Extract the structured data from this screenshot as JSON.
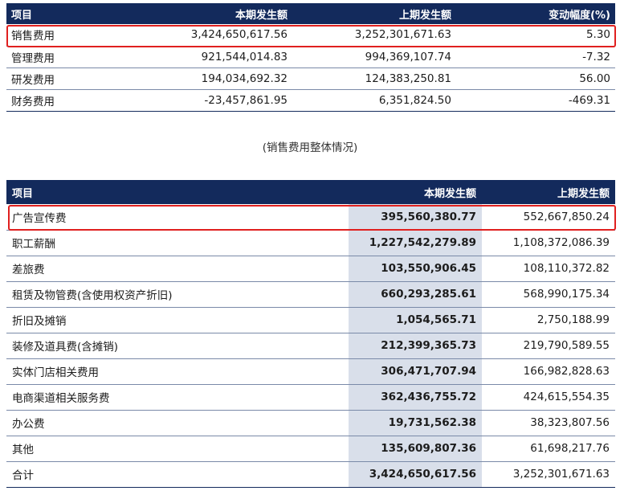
{
  "table1": {
    "headers": [
      "项目",
      "本期发生额",
      "上期发生额",
      "变动幅度(%)"
    ],
    "rows": [
      [
        "销售费用",
        "3,424,650,617.56",
        "3,252,301,671.63",
        "5.30"
      ],
      [
        "管理费用",
        "921,544,014.83",
        "994,369,107.74",
        "-7.32"
      ],
      [
        "研发费用",
        "194,034,692.32",
        "124,383,250.81",
        "56.00"
      ],
      [
        "财务费用",
        "-23,457,861.95",
        "6,351,824.50",
        "-469.31"
      ]
    ]
  },
  "caption": "(销售费用整体情况)",
  "table2": {
    "headers": [
      "项目",
      "本期发生额",
      "上期发生额"
    ],
    "rows": [
      [
        "广告宣传费",
        "395,560,380.77",
        "552,667,850.24"
      ],
      [
        "职工薪酬",
        "1,227,542,279.89",
        "1,108,372,086.39"
      ],
      [
        "差旅费",
        "103,550,906.45",
        "108,110,372.82"
      ],
      [
        "租赁及物管费(含使用权资产折旧)",
        "660,293,285.61",
        "568,990,175.34"
      ],
      [
        "折旧及摊销",
        "1,054,565.71",
        "2,750,188.99"
      ],
      [
        "装修及道具费(含摊销)",
        "212,399,365.73",
        "219,790,589.55"
      ],
      [
        "实体门店相关费用",
        "306,471,707.94",
        "166,982,828.63"
      ],
      [
        "电商渠道相关服务费",
        "362,436,755.72",
        "424,615,554.35"
      ],
      [
        "办公费",
        "19,731,562.38",
        "38,323,807.56"
      ],
      [
        "其他",
        "135,609,807.36",
        "61,698,217.76"
      ],
      [
        "合计",
        "3,424,650,617.56",
        "3,252,301,671.63"
      ]
    ]
  },
  "highlight_color": "#e0201f",
  "header_color": "#132a5c",
  "current_period_fill": "#d9dfea"
}
